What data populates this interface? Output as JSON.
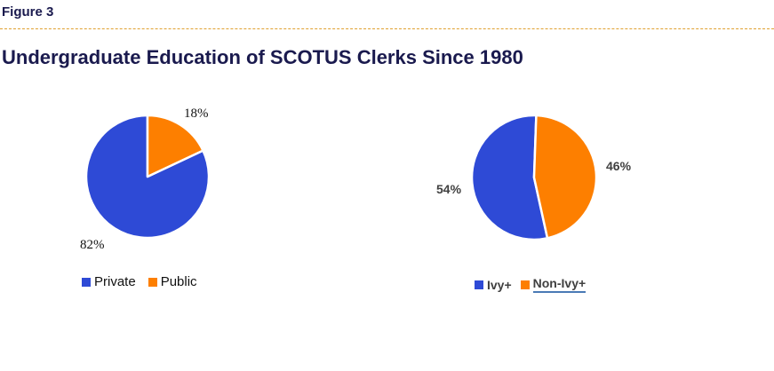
{
  "figure_label": "Figure 3",
  "chart_data": [
    {
      "type": "pie",
      "title": "Undergraduate Education of SCOTUS Clerks Since 1980",
      "slices": [
        {
          "name": "Private",
          "value": 82,
          "label": "82%",
          "color": "#2e4ad6"
        },
        {
          "name": "Public",
          "value": 18,
          "label": "18%",
          "color": "#fd7f00"
        }
      ],
      "legend": "bottom"
    },
    {
      "type": "pie",
      "slices": [
        {
          "name": "Ivy+",
          "value": 54,
          "label": "54%",
          "color": "#2e4ad6"
        },
        {
          "name": "Non-Ivy+",
          "value": 46,
          "label": "46%",
          "color": "#fd7f00"
        }
      ],
      "legend": "bottom"
    }
  ]
}
